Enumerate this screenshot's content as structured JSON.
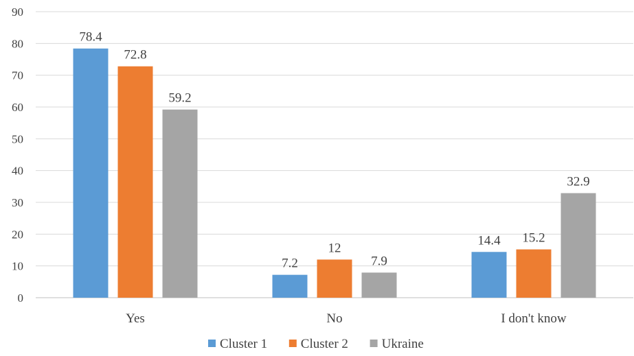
{
  "chart_data": {
    "type": "bar",
    "title": "",
    "xlabel": "",
    "ylabel": "",
    "categories": [
      "Yes",
      "No",
      "I don't know"
    ],
    "series": [
      {
        "name": "Cluster 1",
        "color": "#5b9bd5",
        "values": [
          78.4,
          7.2,
          14.4
        ],
        "labels": [
          "78.4",
          "7.2",
          "14.4"
        ]
      },
      {
        "name": "Cluster 2",
        "color": "#ed7d31",
        "values": [
          72.8,
          12,
          15.2
        ],
        "labels": [
          "72.8",
          "12",
          "15.2"
        ]
      },
      {
        "name": "Ukraine",
        "color": "#a5a5a5",
        "values": [
          59.2,
          7.9,
          32.9
        ],
        "labels": [
          "59.2",
          "7.9",
          "32.9"
        ]
      }
    ],
    "ylim": [
      0,
      90
    ],
    "yticks": [
      0,
      10,
      20,
      30,
      40,
      50,
      60,
      70,
      80,
      90
    ],
    "grid": true,
    "legend_position": "bottom"
  }
}
